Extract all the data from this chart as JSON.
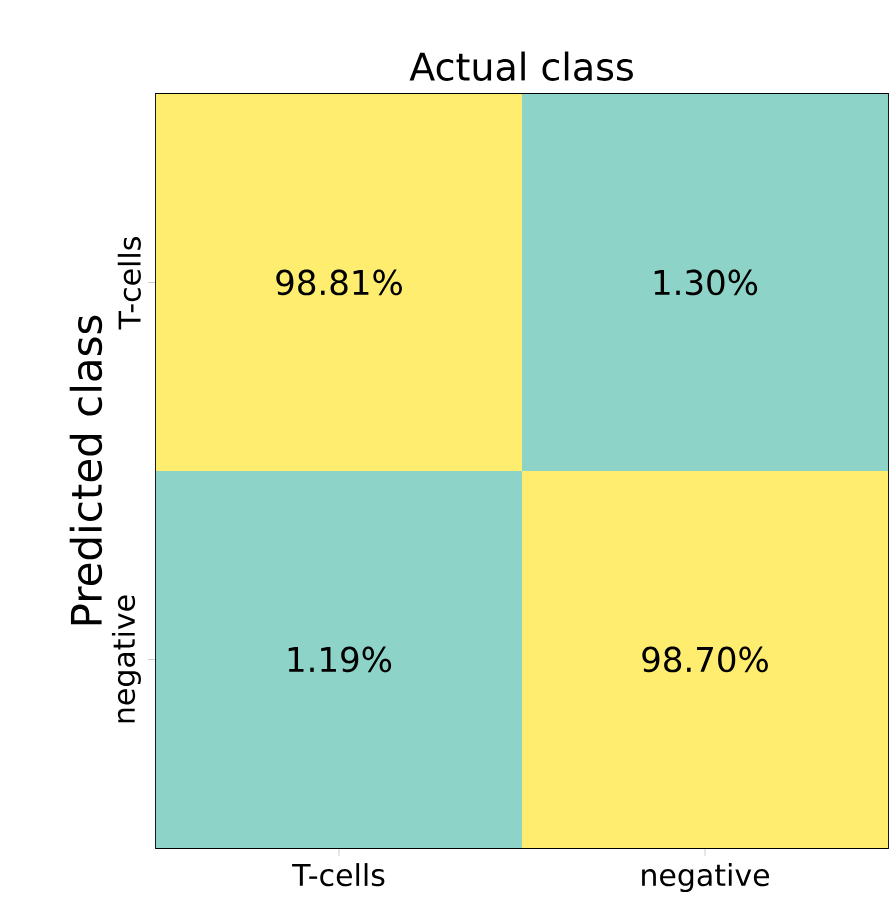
{
  "chart_data": {
    "type": "heatmap",
    "title": "Actual class",
    "ylabel": "Predicted class",
    "categories": [
      "T-cells",
      "negative"
    ],
    "y_categories": [
      "T-cells",
      "negative"
    ],
    "cells": [
      [
        98.81,
        1.3
      ],
      [
        1.19,
        98.7
      ]
    ],
    "cell_labels": [
      [
        "98.81%",
        "1.30%"
      ],
      [
        "1.19%",
        "98.70%"
      ]
    ],
    "colors": [
      "#8dd3c7",
      "#ffed6f"
    ]
  }
}
